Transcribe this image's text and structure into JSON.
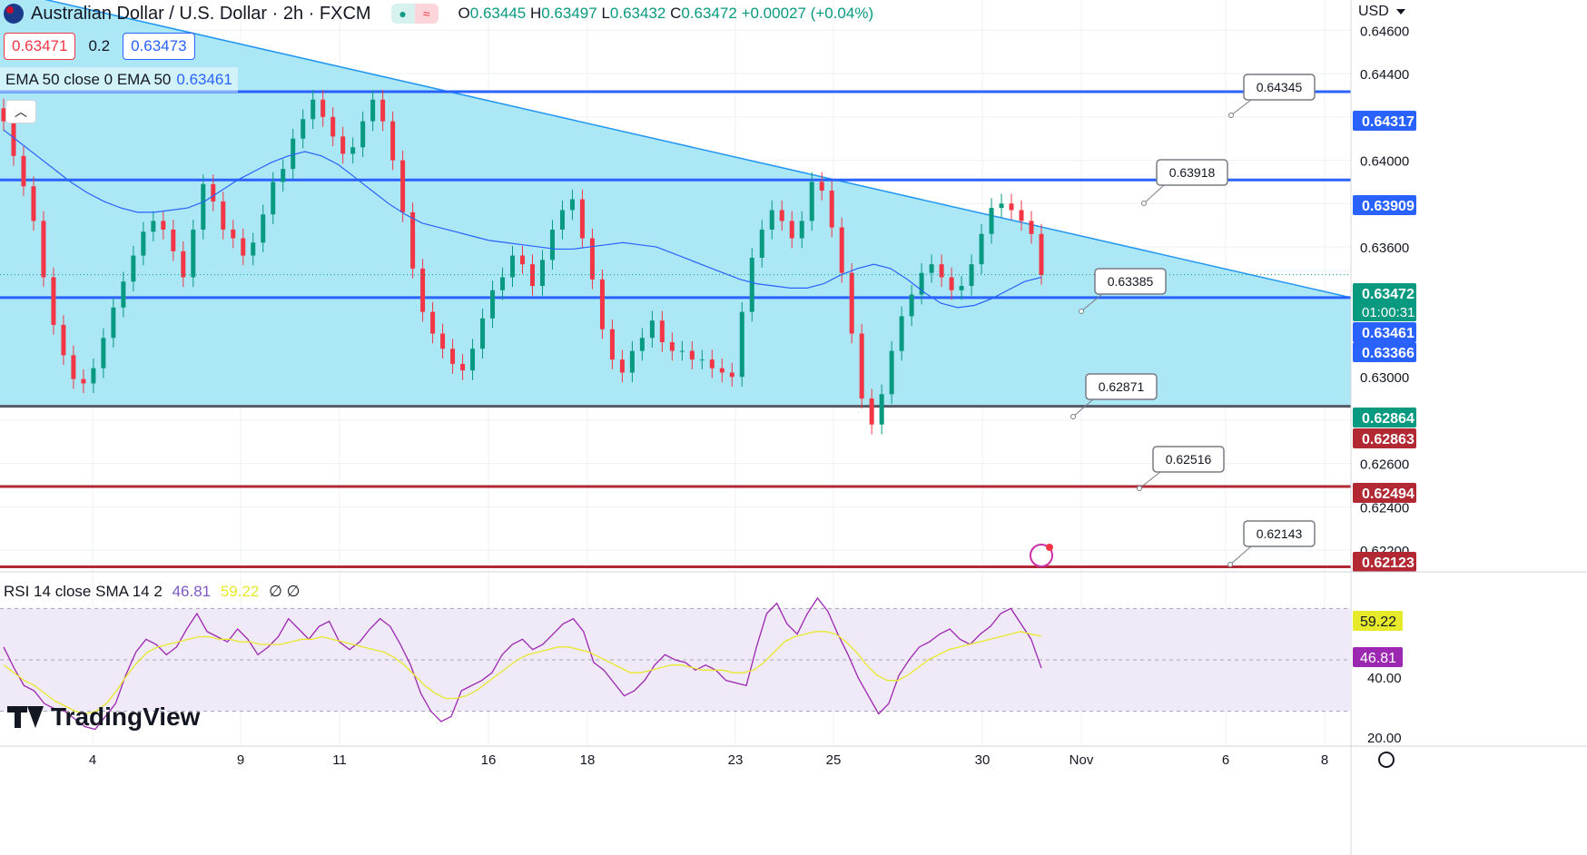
{
  "header": {
    "title": "Australian Dollar / U.S. Dollar · 2h · FXCM",
    "ohlc": {
      "open_label": "O",
      "open": "0.63445",
      "high_label": "H",
      "high": "0.63497",
      "low_label": "L",
      "low": "0.63432",
      "close_label": "C",
      "close": "0.63472",
      "change": "+0.00027 (+0.04%)"
    },
    "bid": "0.63471",
    "spread": "0.2",
    "ask": "0.63473"
  },
  "ema_legend": {
    "text": "EMA 50 close 0 EMA 50",
    "value": "0.63461"
  },
  "rsi_legend": {
    "text": "RSI 14 close SMA 14 2",
    "rsi": "46.81",
    "sma": "59.22",
    "extra": "∅ ∅"
  },
  "currency": "USD",
  "brand": "TradingView",
  "colors": {
    "up": "#089981",
    "down": "#f23645",
    "triangle_fill": "#a8e6f4",
    "triangle_edge": "#2196f3",
    "support_line": "#2962ff",
    "resistance_red": "#b22833",
    "ema": "#2962ff",
    "rsi": "#9c27b0",
    "rsi_sma": "#e7e92b",
    "callout_border": "#787b86"
  },
  "icons": [
    "flag-icon",
    "chevron-up-icon",
    "flash-icon",
    "settings-icon"
  ],
  "chart_data": {
    "type": "candlestick",
    "symbol": "AUDUSD",
    "interval": "2h",
    "price_axis": {
      "ticks": [
        "0.64600",
        "0.64400",
        "0.64200",
        "0.64000",
        "0.63800",
        "0.63600",
        "0.63400",
        "0.63200",
        "0.63000",
        "0.62800",
        "0.62600",
        "0.62400",
        "0.62200"
      ],
      "range": [
        0.621,
        0.6474
      ]
    },
    "time_axis": {
      "labels": [
        "4",
        "9",
        "11",
        "16",
        "18",
        "23",
        "25",
        "30",
        "Nov",
        "6",
        "8"
      ]
    },
    "price_labels": [
      {
        "text": "0.63472",
        "sub": "01:00:31",
        "kind": "last"
      },
      {
        "text": "0.64317",
        "kind": "blue"
      },
      {
        "text": "0.63909",
        "kind": "blue"
      },
      {
        "text": "0.63461",
        "kind": "blue"
      },
      {
        "text": "0.63366",
        "kind": "blue"
      },
      {
        "text": "0.62864",
        "kind": "green"
      },
      {
        "text": "0.62863",
        "kind": "red"
      },
      {
        "text": "0.62494",
        "kind": "red"
      },
      {
        "text": "0.62123",
        "kind": "red"
      }
    ],
    "levels": [
      0.64317,
      0.63909,
      0.63366,
      0.62864,
      0.62494,
      0.62123
    ],
    "callouts": [
      "0.64345",
      "0.63918",
      "0.63385",
      "0.62871",
      "0.62516",
      "0.62143"
    ],
    "triangle": {
      "upper_from": 0.6479,
      "upper_to": 0.63366,
      "lower": 0.62864
    },
    "ema50": [
      0.6414,
      0.6408,
      0.6402,
      0.6396,
      0.639,
      0.6385,
      0.6381,
      0.6378,
      0.6376,
      0.6376,
      0.6377,
      0.6378,
      0.6381,
      0.6386,
      0.6391,
      0.6395,
      0.6399,
      0.6402,
      0.6404,
      0.6402,
      0.6398,
      0.6392,
      0.6386,
      0.638,
      0.6375,
      0.6371,
      0.6369,
      0.6367,
      0.6365,
      0.6363,
      0.6362,
      0.6361,
      0.636,
      0.6359,
      0.6359,
      0.636,
      0.6361,
      0.6362,
      0.6361,
      0.636,
      0.6357,
      0.6354,
      0.6351,
      0.6348,
      0.6345,
      0.6343,
      0.6342,
      0.6341,
      0.6341,
      0.6343,
      0.6347,
      0.635,
      0.6352,
      0.635,
      0.6345,
      0.6339,
      0.6334,
      0.6332,
      0.6333,
      0.6336,
      0.634,
      0.6344,
      0.6346
    ],
    "close": [
      0.6418,
      0.6402,
      0.6388,
      0.6372,
      0.6346,
      0.6324,
      0.631,
      0.6299,
      0.6297,
      0.6304,
      0.6318,
      0.6332,
      0.6344,
      0.6356,
      0.6367,
      0.6372,
      0.6368,
      0.6358,
      0.6346,
      0.6368,
      0.6389,
      0.6381,
      0.6368,
      0.6364,
      0.6356,
      0.6362,
      0.6375,
      0.639,
      0.6396,
      0.641,
      0.6419,
      0.6428,
      0.642,
      0.6411,
      0.6403,
      0.6406,
      0.6418,
      0.6428,
      0.6418,
      0.64,
      0.6376,
      0.635,
      0.633,
      0.632,
      0.6313,
      0.6306,
      0.6303,
      0.6313,
      0.6327,
      0.634,
      0.6346,
      0.6356,
      0.6352,
      0.6342,
      0.6354,
      0.6368,
      0.6377,
      0.6382,
      0.6364,
      0.6345,
      0.6322,
      0.6308,
      0.6302,
      0.6312,
      0.6318,
      0.6326,
      0.6316,
      0.6312,
      0.6312,
      0.6308,
      0.6308,
      0.6304,
      0.6302,
      0.63,
      0.633,
      0.6355,
      0.6368,
      0.6377,
      0.6372,
      0.6364,
      0.6372,
      0.639,
      0.6386,
      0.6369,
      0.6348,
      0.632,
      0.629,
      0.6278,
      0.6292,
      0.6312,
      0.6328,
      0.6338,
      0.6348,
      0.6352,
      0.6346,
      0.634,
      0.6342,
      0.6352,
      0.6366,
      0.6378,
      0.638,
      0.6377,
      0.6372,
      0.6366,
      0.6347
    ],
    "rsi": [
      55,
      47,
      40,
      38,
      33,
      31,
      30,
      27,
      24,
      23,
      28,
      33,
      44,
      53,
      58,
      56,
      52,
      55,
      62,
      68,
      61,
      59,
      57,
      62,
      58,
      52,
      55,
      59,
      66,
      62,
      58,
      63,
      65,
      57,
      54,
      57,
      62,
      66,
      63,
      56,
      48,
      37,
      30,
      26,
      28,
      38,
      40,
      42,
      45,
      52,
      56,
      58,
      54,
      56,
      60,
      64,
      66,
      61,
      49,
      46,
      41,
      36,
      38,
      42,
      48,
      52,
      50,
      49,
      46,
      48,
      46,
      42,
      41,
      40,
      55,
      68,
      72,
      64,
      60,
      68,
      74,
      69,
      60,
      52,
      43,
      36,
      29,
      33,
      44,
      50,
      55,
      57,
      60,
      62,
      58,
      56,
      60,
      63,
      68,
      70,
      64,
      58,
      46.81
    ],
    "rsi_sma": [
      48,
      45,
      42,
      40,
      37,
      34,
      32,
      30,
      29,
      30,
      33,
      38,
      44,
      49,
      53,
      55,
      56,
      57,
      58,
      59,
      59,
      58,
      58,
      57,
      57,
      56,
      56,
      56,
      57,
      58,
      58,
      59,
      58,
      57,
      56,
      55,
      54,
      53,
      51,
      48,
      44,
      40,
      37,
      35,
      35,
      36,
      38,
      41,
      44,
      47,
      50,
      52,
      53,
      54,
      55,
      55,
      54,
      53,
      51,
      49,
      47,
      45,
      45,
      46,
      47,
      48,
      48,
      47,
      46,
      46,
      46,
      45,
      45,
      46,
      49,
      53,
      57,
      59,
      60,
      61,
      61,
      60,
      57,
      53,
      48,
      44,
      42,
      42,
      44,
      47,
      50,
      52,
      54,
      55,
      56,
      57,
      58,
      59,
      60,
      61,
      60,
      59.22
    ],
    "rsi_axis": {
      "ticks": [
        "40.00",
        "20.00"
      ],
      "value_labels": [
        "59.22",
        "46.81"
      ]
    }
  }
}
